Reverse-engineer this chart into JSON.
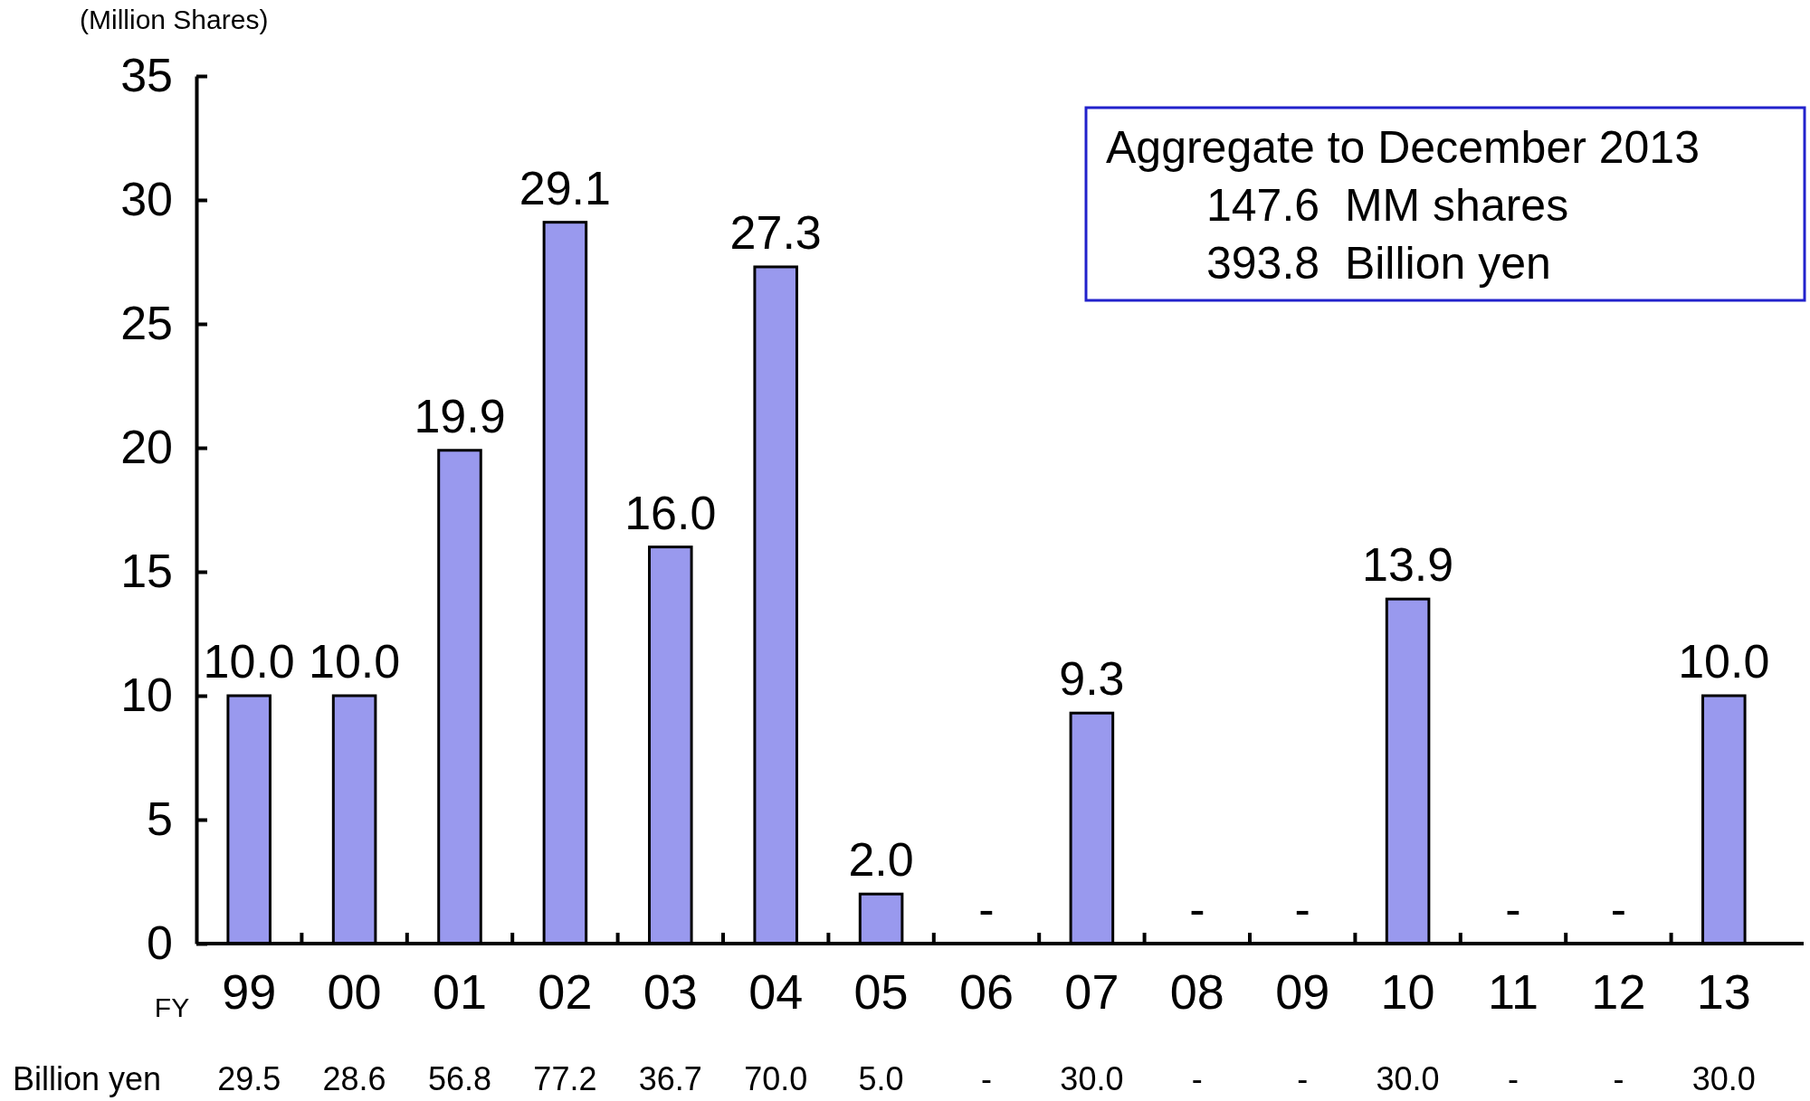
{
  "chart_data": {
    "type": "bar",
    "ylabel": "(Million Shares)",
    "xlabel": "FY",
    "categories": [
      "99",
      "00",
      "01",
      "02",
      "03",
      "04",
      "05",
      "06",
      "07",
      "08",
      "09",
      "10",
      "11",
      "12",
      "13"
    ],
    "values": [
      10.0,
      10.0,
      19.9,
      29.1,
      16.0,
      27.3,
      2.0,
      0,
      9.3,
      0,
      0,
      13.9,
      0,
      0,
      10.0
    ],
    "value_labels": [
      "10.0",
      "10.0",
      "19.9",
      "29.1",
      "16.0",
      "27.3",
      "2.0",
      "-",
      "9.3",
      "-",
      "-",
      "13.9",
      "-",
      "-",
      "10.0"
    ],
    "color": "#9999ee",
    "ylim": [
      0,
      35
    ],
    "yticks": [
      0,
      5,
      10,
      15,
      20,
      25,
      30,
      35
    ],
    "grid": false,
    "annotations": [
      "Aggregate to December 2013",
      "147.6  MM shares",
      "393.8  Billion yen",
      "Billion yen",
      "29.5",
      "28.6",
      "56.8",
      "77.2",
      "36.7",
      "70.0",
      "5.0",
      "-",
      "30.0",
      "-",
      "-",
      "30.0",
      "-",
      "-",
      "30.0"
    ]
  }
}
